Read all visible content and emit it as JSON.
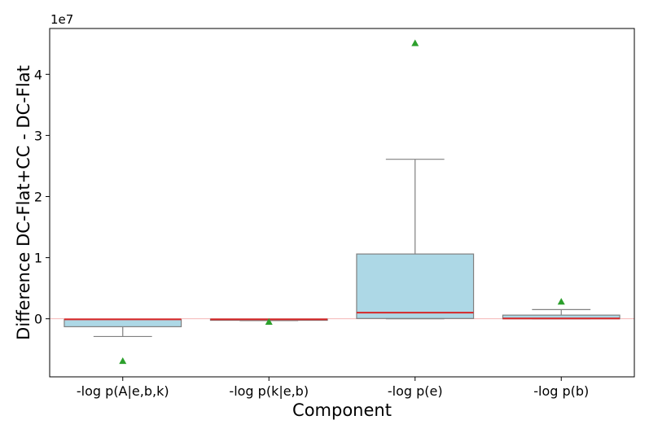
{
  "chart_data": {
    "type": "box",
    "xlabel": "Component",
    "ylabel": "Difference DC-Flat+CC - DC-Flat",
    "scale_label": "1e7",
    "y_unit": 10000000,
    "ylim": [
      -9500000,
      47500000
    ],
    "yticks": [
      0,
      10000000,
      20000000,
      30000000,
      40000000
    ],
    "ytick_labels": [
      "0",
      "1",
      "2",
      "3",
      "4"
    ],
    "grid": false,
    "zero_reference_line": true,
    "categories": [
      "-log p(A|e,b,k)",
      "-log p(k|e,b)",
      "-log p(e)",
      "-log p(b)"
    ],
    "boxes": [
      {
        "whisker_low": -2900000,
        "q1": -1300000,
        "median": -100000,
        "q3": -100000,
        "whisker_high": -100000,
        "mean": -6900000
      },
      {
        "whisker_low": -300000,
        "q1": -200000,
        "median": -100000,
        "q3": -50000,
        "whisker_high": -50000,
        "mean": -500000
      },
      {
        "whisker_low": 0,
        "q1": 50000,
        "median": 1000000,
        "q3": 10600000,
        "whisker_high": 26100000,
        "mean": 45100000
      },
      {
        "whisker_low": 0,
        "q1": 0,
        "median": 50000,
        "q3": 600000,
        "whisker_high": 1500000,
        "mean": 2800000
      }
    ],
    "colors": {
      "box_fill": "#add8e6",
      "box_edge": "#808080",
      "median": "#d62728",
      "mean_marker": "#2ca02c",
      "zero_line": "#f4b6b6"
    }
  }
}
